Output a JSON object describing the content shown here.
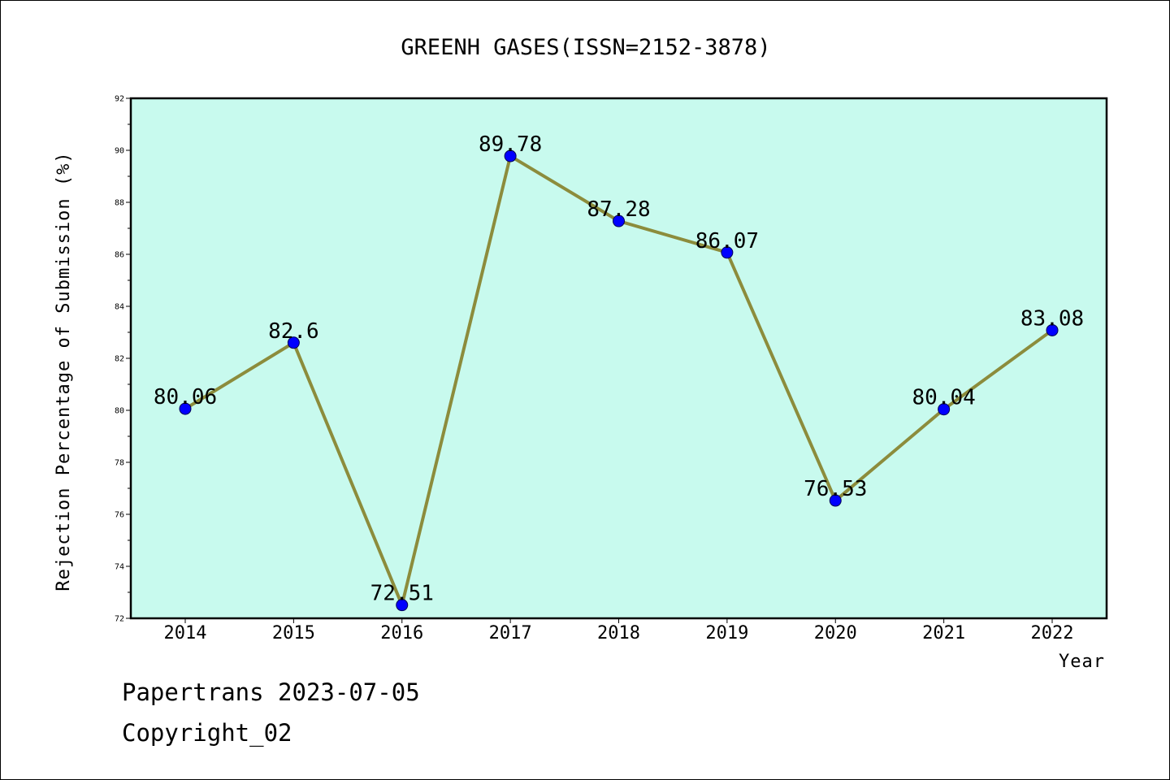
{
  "chart_data": {
    "type": "line",
    "title": "GREENH GASES(ISSN=2152-3878)",
    "xlabel": "Year",
    "ylabel": "Rejection Percentage of Submission (%)",
    "categories": [
      "2014",
      "2015",
      "2016",
      "2017",
      "2018",
      "2019",
      "2020",
      "2021",
      "2022"
    ],
    "series": [
      {
        "values": [
          80.06,
          82.6,
          72.51,
          89.78,
          87.28,
          86.07,
          76.53,
          80.04,
          83.08
        ],
        "labels": [
          "80.06",
          "82.6",
          "72.51",
          "89.78",
          "87.28",
          "86.07",
          "76.53",
          "80.04",
          "83.08"
        ]
      }
    ],
    "ylim": [
      72,
      92
    ],
    "yticks": [
      "72",
      "74",
      "76",
      "78",
      "80",
      "82",
      "84",
      "86",
      "88",
      "90",
      "92"
    ],
    "grid": false,
    "colors": {
      "plot_background": "#c8faee",
      "line": "#8c8c3c",
      "marker": "#0000ff"
    }
  },
  "footer": {
    "line1": "Papertrans 2023-07-05",
    "line2": "Copyright_02"
  }
}
